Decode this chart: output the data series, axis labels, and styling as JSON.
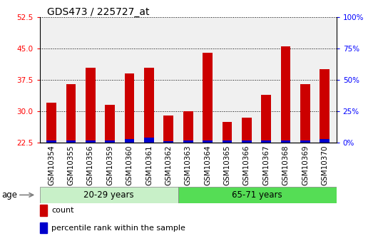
{
  "title": "GDS473 / 225727_at",
  "samples": [
    "GSM10354",
    "GSM10355",
    "GSM10356",
    "GSM10359",
    "GSM10360",
    "GSM10361",
    "GSM10362",
    "GSM10363",
    "GSM10364",
    "GSM10365",
    "GSM10366",
    "GSM10367",
    "GSM10368",
    "GSM10369",
    "GSM10370"
  ],
  "count_values": [
    32.0,
    36.5,
    40.5,
    31.5,
    39.0,
    40.5,
    29.0,
    30.0,
    44.0,
    27.5,
    28.5,
    34.0,
    45.5,
    36.5,
    40.0
  ],
  "percentile_values": [
    2.0,
    2.0,
    2.0,
    2.0,
    3.0,
    4.0,
    1.0,
    2.0,
    2.0,
    2.0,
    2.0,
    2.0,
    2.0,
    2.0,
    3.0
  ],
  "ylim_left": [
    22.5,
    52.5
  ],
  "ylim_right": [
    0,
    100
  ],
  "yticks_left": [
    22.5,
    30.0,
    37.5,
    45.0,
    52.5
  ],
  "yticks_right": [
    0,
    25,
    50,
    75,
    100
  ],
  "group1_label": "20-29 years",
  "group2_label": "65-71 years",
  "group1_count": 7,
  "group2_count": 8,
  "age_label": "age",
  "bar_color_count": "#cc0000",
  "bar_color_pct": "#0000cc",
  "legend_count": "count",
  "legend_pct": "percentile rank within the sample",
  "bar_width": 0.5,
  "background_plot": "#f0f0f0",
  "group1_color": "#c8f0c8",
  "group2_color": "#55dd55",
  "title_fontsize": 10,
  "tick_fontsize": 7.5
}
